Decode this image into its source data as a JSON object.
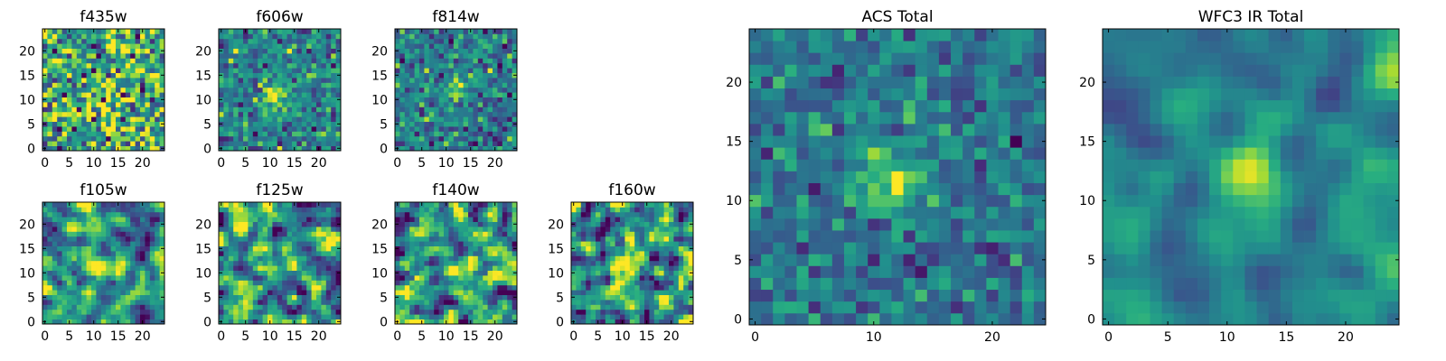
{
  "colors": {
    "colormap": "viridis",
    "low": "#440154",
    "mid": "#21918c",
    "high": "#fde725",
    "axes_edge": "#000000",
    "background": "#ffffff"
  },
  "chart_data": [
    {
      "type": "heatmap",
      "title": "f435w",
      "grid_size": 25,
      "x_ticks": [
        0,
        5,
        10,
        15,
        20
      ],
      "y_ticks": [
        0,
        5,
        10,
        15,
        20
      ],
      "xlim": [
        0,
        24
      ],
      "ylim": [
        0,
        24
      ],
      "source_center": [
        11,
        11
      ],
      "source_strength": 0.15,
      "source_sigma": 2.0,
      "noise": 0.3,
      "base": 0.62,
      "smoothing": 0,
      "seed": 11
    },
    {
      "type": "heatmap",
      "title": "f606w",
      "grid_size": 25,
      "x_ticks": [
        0,
        5,
        10,
        15,
        20
      ],
      "y_ticks": [
        0,
        5,
        10,
        15,
        20
      ],
      "xlim": [
        0,
        24
      ],
      "ylim": [
        0,
        24
      ],
      "source_center": [
        11,
        11
      ],
      "source_strength": 0.55,
      "source_sigma": 1.7,
      "noise": 0.17,
      "base": 0.45,
      "smoothing": 0,
      "seed": 22
    },
    {
      "type": "heatmap",
      "title": "f814w",
      "grid_size": 25,
      "x_ticks": [
        0,
        5,
        10,
        15,
        20
      ],
      "y_ticks": [
        0,
        5,
        10,
        15,
        20
      ],
      "xlim": [
        0,
        24
      ],
      "ylim": [
        0,
        24
      ],
      "source_center": [
        12,
        12
      ],
      "source_strength": 0.55,
      "source_sigma": 1.6,
      "noise": 0.17,
      "base": 0.42,
      "smoothing": 0,
      "seed": 33
    },
    {
      "type": "heatmap",
      "title": "f105w",
      "grid_size": 25,
      "x_ticks": [
        0,
        5,
        10,
        15,
        20
      ],
      "y_ticks": [
        0,
        5,
        10,
        15,
        20
      ],
      "xlim": [
        0,
        24
      ],
      "ylim": [
        0,
        24
      ],
      "source_center": [
        11,
        11
      ],
      "source_strength": 0.5,
      "source_sigma": 1.8,
      "noise": 0.22,
      "base": 0.5,
      "smoothing": 1,
      "seed": 44
    },
    {
      "type": "heatmap",
      "title": "f125w",
      "grid_size": 25,
      "x_ticks": [
        0,
        5,
        10,
        15,
        20
      ],
      "y_ticks": [
        0,
        5,
        10,
        15,
        20
      ],
      "xlim": [
        0,
        24
      ],
      "ylim": [
        0,
        24
      ],
      "source_center": [
        11,
        11
      ],
      "source_strength": 0.45,
      "source_sigma": 1.8,
      "noise": 0.26,
      "base": 0.5,
      "smoothing": 1,
      "seed": 55
    },
    {
      "type": "heatmap",
      "title": "f140w",
      "grid_size": 25,
      "x_ticks": [
        0,
        5,
        10,
        15,
        20
      ],
      "y_ticks": [
        0,
        5,
        10,
        15,
        20
      ],
      "xlim": [
        0,
        24
      ],
      "ylim": [
        0,
        24
      ],
      "source_center": [
        12,
        12
      ],
      "source_strength": 0.45,
      "source_sigma": 1.8,
      "noise": 0.26,
      "base": 0.52,
      "smoothing": 1,
      "seed": 66
    },
    {
      "type": "heatmap",
      "title": "f160w",
      "grid_size": 25,
      "x_ticks": [
        0,
        5,
        10,
        15,
        20
      ],
      "y_ticks": [
        0,
        5,
        10,
        15,
        20
      ],
      "xlim": [
        0,
        24
      ],
      "ylim": [
        0,
        24
      ],
      "source_center": [
        12,
        12
      ],
      "source_strength": 0.45,
      "source_sigma": 1.8,
      "noise": 0.26,
      "base": 0.5,
      "smoothing": 1,
      "seed": 77
    },
    {
      "type": "heatmap",
      "title": "ACS Total",
      "grid_size": 25,
      "x_ticks": [
        0,
        10,
        20
      ],
      "y_ticks": [
        0,
        5,
        10,
        15,
        20
      ],
      "xlim": [
        0,
        24
      ],
      "ylim": [
        0,
        24
      ],
      "source_center": [
        11.5,
        11.5
      ],
      "source_strength": 0.55,
      "source_sigma": 1.6,
      "noise": 0.13,
      "base": 0.4,
      "smoothing": 0,
      "seed": 88
    },
    {
      "type": "heatmap",
      "title": "WFC3 IR Total",
      "grid_size": 25,
      "x_ticks": [
        0,
        5,
        10,
        15,
        20
      ],
      "y_ticks": [
        0,
        5,
        10,
        15,
        20
      ],
      "xlim": [
        0,
        24
      ],
      "ylim": [
        0,
        24
      ],
      "source_center": [
        11.5,
        12
      ],
      "source_strength": 0.45,
      "source_sigma": 2.0,
      "noise": 0.1,
      "base": 0.45,
      "smoothing": 2,
      "seed": 99
    }
  ]
}
